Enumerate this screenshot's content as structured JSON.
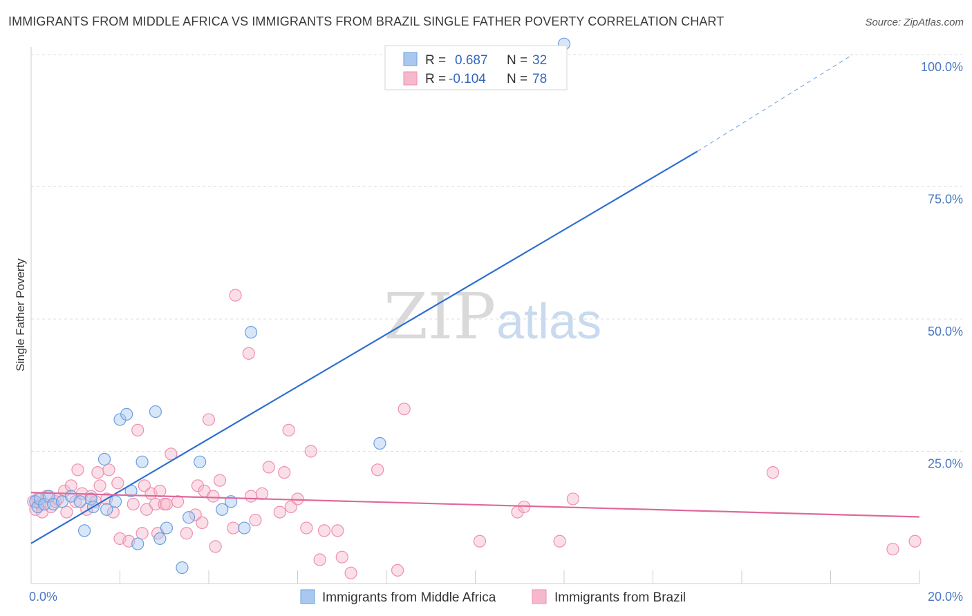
{
  "header": {
    "title": "IMMIGRANTS FROM MIDDLE AFRICA VS IMMIGRANTS FROM BRAZIL SINGLE FATHER POVERTY CORRELATION CHART",
    "source": "Source: ZipAtlas.com"
  },
  "watermark": {
    "zip": "ZIP",
    "atlas": "atlas"
  },
  "colors": {
    "blue_fill": "#a8c8f0",
    "blue_stroke": "#6b9fe0",
    "blue_line": "#2e6fcf",
    "pink_fill": "#f6b8cc",
    "pink_stroke": "#ee8fae",
    "pink_line": "#e0689a",
    "grid": "#dddddd",
    "tick_label": "#4a78c2"
  },
  "legend": {
    "rows": [
      {
        "r_label": "R = ",
        "r_value": "0.687",
        "n_label": "N = ",
        "n_value": "32"
      },
      {
        "r_label": "R = ",
        "r_value": "-0.104",
        "n_label": "N = ",
        "n_value": "78"
      }
    ]
  },
  "chart_data": {
    "type": "scatter",
    "title": "IMMIGRANTS FROM MIDDLE AFRICA VS IMMIGRANTS FROM BRAZIL SINGLE FATHER POVERTY CORRELATION CHART",
    "xlabel": "",
    "ylabel": "Single Father Poverty",
    "xlim": [
      0,
      20
    ],
    "ylim": [
      0,
      100
    ],
    "x_tick_labels": [
      "0.0%",
      "20.0%"
    ],
    "y_ticks": [
      25,
      50,
      75,
      100
    ],
    "y_tick_labels": [
      "25.0%",
      "50.0%",
      "75.0%",
      "100.0%"
    ],
    "grid": true,
    "series": [
      {
        "name": "Immigrants from Middle Africa",
        "color": "blue",
        "r": 0.687,
        "n": 32,
        "trend": {
          "x0": 0,
          "y0": 7.6,
          "x1": 15.0,
          "y1": 81.7,
          "dash_to_x": 18.5,
          "dash_to_y": 100
        },
        "points": [
          [
            0.1,
            15.5
          ],
          [
            0.15,
            14.5
          ],
          [
            0.2,
            16.0
          ],
          [
            0.3,
            15.0
          ],
          [
            0.4,
            16.5
          ],
          [
            0.5,
            15.0
          ],
          [
            0.7,
            15.5
          ],
          [
            0.9,
            16.5
          ],
          [
            1.1,
            15.5
          ],
          [
            1.2,
            10.0
          ],
          [
            1.35,
            16.0
          ],
          [
            1.4,
            14.5
          ],
          [
            1.65,
            23.5
          ],
          [
            1.7,
            14.0
          ],
          [
            1.9,
            15.5
          ],
          [
            2.0,
            31.0
          ],
          [
            2.15,
            32.0
          ],
          [
            2.25,
            17.5
          ],
          [
            2.4,
            7.5
          ],
          [
            2.5,
            23.0
          ],
          [
            2.8,
            32.5
          ],
          [
            2.9,
            8.5
          ],
          [
            3.05,
            10.5
          ],
          [
            3.4,
            3.0
          ],
          [
            3.55,
            12.5
          ],
          [
            3.8,
            23.0
          ],
          [
            4.3,
            14.0
          ],
          [
            4.5,
            15.5
          ],
          [
            4.8,
            10.5
          ],
          [
            4.95,
            47.5
          ],
          [
            7.85,
            26.5
          ],
          [
            12.0,
            102.0
          ]
        ]
      },
      {
        "name": "Immigrants from Brazil",
        "color": "pink",
        "r": -0.104,
        "n": 78,
        "trend": {
          "x0": 0,
          "y0": 17.2,
          "x1": 20,
          "y1": 12.6
        },
        "points": [
          [
            0.05,
            15.5
          ],
          [
            0.1,
            14.0
          ],
          [
            0.15,
            16.0
          ],
          [
            0.2,
            15.0
          ],
          [
            0.25,
            13.5
          ],
          [
            0.35,
            16.5
          ],
          [
            0.45,
            14.5
          ],
          [
            0.55,
            15.5
          ],
          [
            0.6,
            16.0
          ],
          [
            0.75,
            17.5
          ],
          [
            0.8,
            13.5
          ],
          [
            0.9,
            18.5
          ],
          [
            1.0,
            15.5
          ],
          [
            1.05,
            21.5
          ],
          [
            1.15,
            17.0
          ],
          [
            1.25,
            14.0
          ],
          [
            1.35,
            16.5
          ],
          [
            1.45,
            15.5
          ],
          [
            1.5,
            21.0
          ],
          [
            1.55,
            18.5
          ],
          [
            1.7,
            16.0
          ],
          [
            1.75,
            21.5
          ],
          [
            1.85,
            13.5
          ],
          [
            1.95,
            19.0
          ],
          [
            2.0,
            8.5
          ],
          [
            2.2,
            8.0
          ],
          [
            2.3,
            15.0
          ],
          [
            2.4,
            29.0
          ],
          [
            2.5,
            9.5
          ],
          [
            2.55,
            18.5
          ],
          [
            2.6,
            14.0
          ],
          [
            2.7,
            17.0
          ],
          [
            2.8,
            15.0
          ],
          [
            2.85,
            9.5
          ],
          [
            2.9,
            17.5
          ],
          [
            3.0,
            15.0
          ],
          [
            3.05,
            15.0
          ],
          [
            3.15,
            24.5
          ],
          [
            3.3,
            15.5
          ],
          [
            3.5,
            9.5
          ],
          [
            3.7,
            13.0
          ],
          [
            3.75,
            18.5
          ],
          [
            3.85,
            11.5
          ],
          [
            3.9,
            17.5
          ],
          [
            4.0,
            31.0
          ],
          [
            4.1,
            16.5
          ],
          [
            4.15,
            7.0
          ],
          [
            4.25,
            19.5
          ],
          [
            4.55,
            10.5
          ],
          [
            4.6,
            54.5
          ],
          [
            4.9,
            43.5
          ],
          [
            4.95,
            16.5
          ],
          [
            5.05,
            12.0
          ],
          [
            5.2,
            17.0
          ],
          [
            5.35,
            22.0
          ],
          [
            5.6,
            13.5
          ],
          [
            5.7,
            21.0
          ],
          [
            5.8,
            29.0
          ],
          [
            5.85,
            14.5
          ],
          [
            6.0,
            16.0
          ],
          [
            6.2,
            10.5
          ],
          [
            6.3,
            25.0
          ],
          [
            6.5,
            4.5
          ],
          [
            6.6,
            10.0
          ],
          [
            6.9,
            10.0
          ],
          [
            7.0,
            5.0
          ],
          [
            7.2,
            2.0
          ],
          [
            7.8,
            21.5
          ],
          [
            8.25,
            2.5
          ],
          [
            8.4,
            33.0
          ],
          [
            10.1,
            8.0
          ],
          [
            10.95,
            13.5
          ],
          [
            11.1,
            14.5
          ],
          [
            11.9,
            8.0
          ],
          [
            16.7,
            21.0
          ],
          [
            19.4,
            6.5
          ],
          [
            19.9,
            8.0
          ],
          [
            12.2,
            16.0
          ]
        ]
      }
    ]
  },
  "bottom_legend": {
    "items": [
      {
        "label": "Immigrants from Middle Africa"
      },
      {
        "label": "Immigrants from Brazil"
      }
    ]
  }
}
